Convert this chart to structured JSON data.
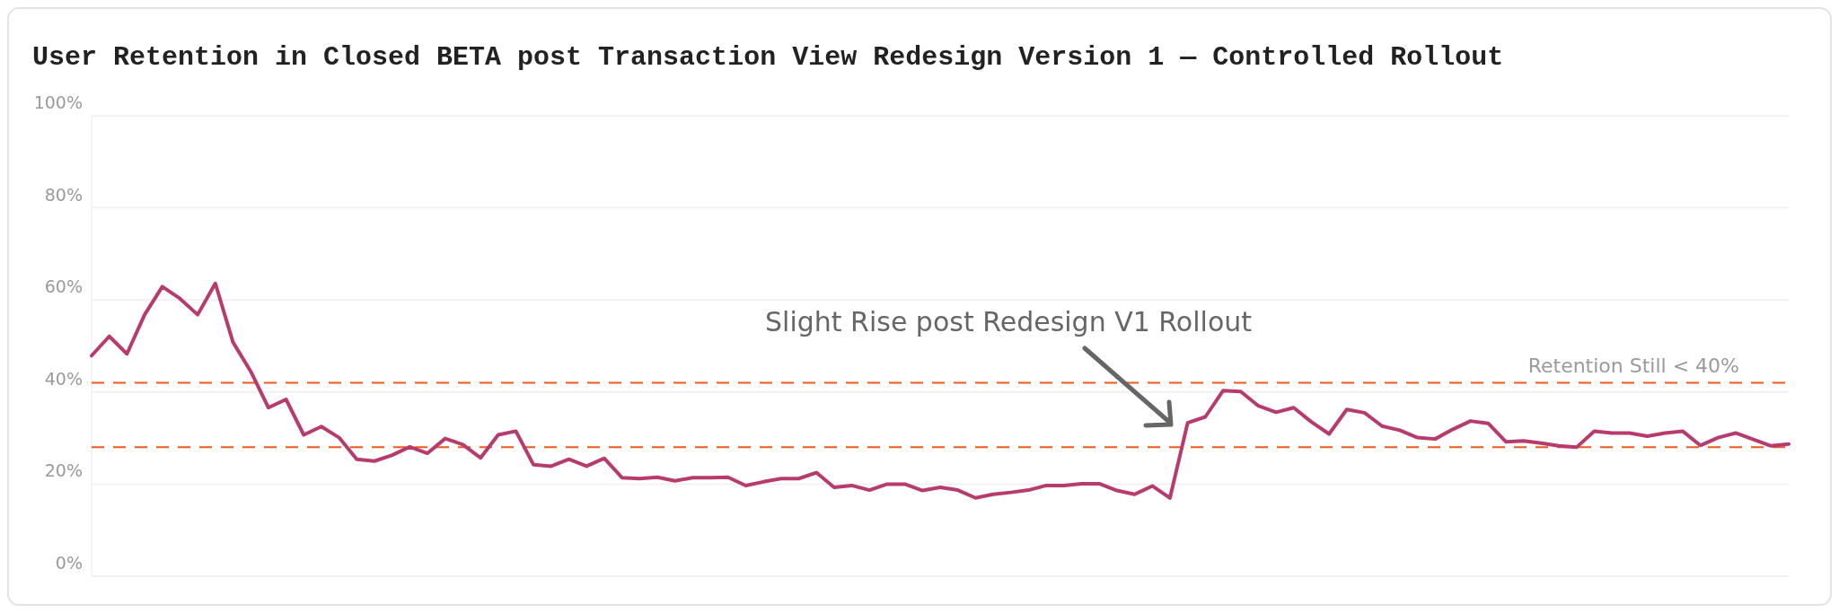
{
  "chart_data": {
    "type": "line",
    "title": "User Retention in Closed BETA post Transaction View Redesign Version 1 — Controlled Rollout",
    "categories": [
      null,
      null,
      null,
      null,
      null,
      null,
      null,
      null,
      null,
      null,
      null,
      null,
      null,
      null,
      null,
      null,
      null,
      null,
      null,
      null,
      null,
      null,
      null,
      null,
      null,
      null,
      null,
      null,
      null,
      null,
      null,
      null,
      null,
      null,
      null,
      null,
      null,
      null,
      null,
      null,
      null,
      null,
      null,
      null,
      null,
      null,
      null,
      null,
      null,
      null,
      null,
      null,
      null,
      null,
      null,
      null,
      null,
      null,
      null,
      null,
      null,
      null,
      null,
      null,
      null,
      null,
      null,
      null,
      null,
      null,
      null,
      null,
      null,
      null,
      null,
      null,
      null,
      null,
      null,
      null,
      null,
      null,
      null,
      null,
      null,
      null,
      null,
      null,
      null,
      null,
      null,
      null,
      null,
      null,
      null,
      null,
      null
    ],
    "series": [
      {
        "color": "#b83b6e",
        "values": [
          47.9,
          52.1,
          48.3,
          56.8,
          62.9,
          60.3,
          56.8,
          63.6,
          50.8,
          44.5,
          36.6,
          38.4,
          30.7,
          32.5,
          30.1,
          25.4,
          25.0,
          26.3,
          28.1,
          26.7,
          29.9,
          28.6,
          25.7,
          30.7,
          31.5,
          24.2,
          23.9,
          25.4,
          23.9,
          25.6,
          21.4,
          21.2,
          21.5,
          20.7,
          21.4,
          21.4,
          21.5,
          19.7,
          20.5,
          21.2,
          21.2,
          22.5,
          19.3,
          19.7,
          18.7,
          20.0,
          20.0,
          18.6,
          19.3,
          18.7,
          17.0,
          17.8,
          18.2,
          18.7,
          19.7,
          19.7,
          20.1,
          20.1,
          18.6,
          17.8,
          19.6,
          17.0,
          33.3,
          34.6,
          40.3,
          40.1,
          37.0,
          35.6,
          36.6,
          33.5,
          30.9,
          36.2,
          35.5,
          32.6,
          31.7,
          30.1,
          29.8,
          31.9,
          33.7,
          33.2,
          29.2,
          29.4,
          28.9,
          28.3,
          28.0,
          31.5,
          31.1,
          31.1,
          30.4,
          31.1,
          31.5,
          28.4,
          30.1,
          31.1,
          29.7,
          28.3,
          28.7
        ]
      }
    ],
    "ylim": [
      0,
      100
    ],
    "yticks": [
      {
        "value": 0,
        "label": "0%"
      },
      {
        "value": 20,
        "label": "20%"
      },
      {
        "value": 40,
        "label": "40%"
      },
      {
        "value": 60,
        "label": "60%"
      },
      {
        "value": 80,
        "label": "80%"
      },
      {
        "value": 100,
        "label": "100%"
      }
    ],
    "grid": "y",
    "line_style": "solid",
    "marker": "none",
    "ref_lines": [
      {
        "axis": "y",
        "value": 42,
        "label": "Retention Still < 40%",
        "color": "#f05a1a",
        "line_style": "dashed"
      },
      {
        "axis": "y",
        "value": 28,
        "color": "#f05a1a",
        "line_style": "dashed"
      }
    ],
    "annotations": [
      "Slight Rise post Redesign V1 Rollout"
    ]
  }
}
